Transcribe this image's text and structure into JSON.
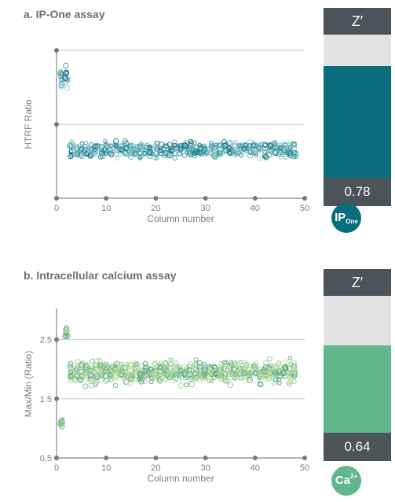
{
  "colors": {
    "zbox_dark": "#4a5459",
    "track": "#e3e3e3",
    "panel_a": "#0a6d7e",
    "panel_b": "#63b78c"
  },
  "chart_data": [
    {
      "title": "a. IP-One assay",
      "type": "scatter",
      "xlabel": "Column number",
      "ylabel": "HTRF Ratio",
      "xlim": [
        0,
        50
      ],
      "x_ticks": [
        "0",
        "10",
        "20",
        "30",
        "40",
        "50"
      ],
      "y_ticks": [],
      "ylim": [
        0,
        1
      ],
      "grid": true,
      "bands": [
        {
          "name": "",
          "x_start": 0.5,
          "x_end": 2.5,
          "center": 0.82,
          "spread": 0.07
        },
        {
          "name": "",
          "x_start": 2.5,
          "x_end": 48.5,
          "center": 0.33,
          "spread": 0.05
        }
      ],
      "z_prime": {
        "label": "Z′",
        "value": "0.78",
        "fill": 0.78
      },
      "badge": {
        "main": "IP",
        "suffix": "One",
        "kind": "sub"
      }
    },
    {
      "title": "b. Intracellular calcium assay",
      "type": "scatter",
      "xlabel": "Column number",
      "ylabel": "Max/Min (Ratio)",
      "xlim": [
        0,
        50
      ],
      "x_ticks": [
        "0",
        "10",
        "20",
        "30",
        "40",
        "50"
      ],
      "y_ticks": [
        "0.5",
        "1.5",
        "2.5"
      ],
      "ylim": [
        0.5,
        3.0
      ],
      "grid": true,
      "bands": [
        {
          "name": "",
          "x_start": 0.5,
          "x_end": 1.5,
          "center": 1.1,
          "spread": 0.1
        },
        {
          "name": "",
          "x_start": 1.5,
          "x_end": 2.5,
          "center": 2.6,
          "spread": 0.12
        },
        {
          "name": "",
          "x_start": 2.5,
          "x_end": 48.5,
          "center": 1.95,
          "spread": 0.18
        }
      ],
      "z_prime": {
        "label": "Z′",
        "value": "0.64",
        "fill": 0.64
      },
      "badge": {
        "main": "Ca",
        "suffix": "2+",
        "kind": "sup"
      }
    }
  ]
}
